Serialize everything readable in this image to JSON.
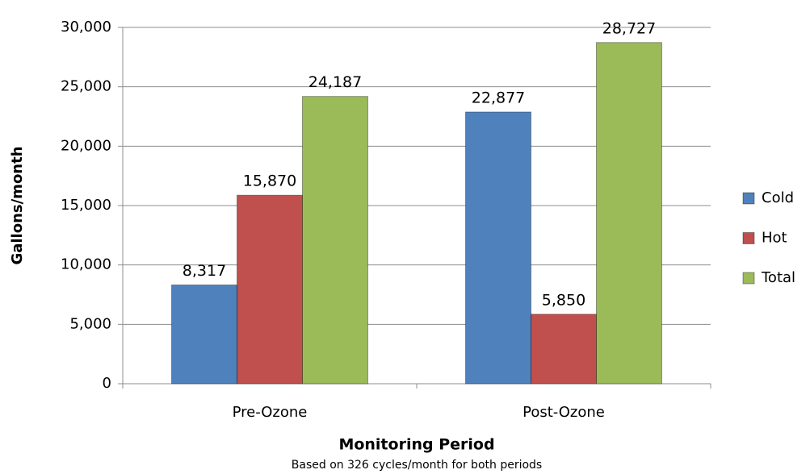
{
  "chart_data": {
    "type": "bar",
    "x_label": "Monitoring Period",
    "y_label": "Gallons/month",
    "subtitle": "Based on 326 cycles/month for both periods",
    "categories": [
      "Pre-Ozone",
      "Post-Ozone"
    ],
    "series": [
      {
        "name": "Cold",
        "color": "#4f81bd",
        "values": [
          8317,
          22877
        ],
        "value_labels": [
          "8,317",
          "22,877"
        ]
      },
      {
        "name": "Hot",
        "color": "#c0504d",
        "values": [
          15870,
          5850
        ],
        "value_labels": [
          "15,870",
          "5,850"
        ]
      },
      {
        "name": "Total",
        "color": "#9bbb59",
        "values": [
          24187,
          28727
        ],
        "value_labels": [
          "24,187",
          "28,727"
        ]
      }
    ],
    "ylim": [
      0,
      30000
    ],
    "yticks": [
      0,
      {
        "value": 5000,
        "label": "5,000"
      },
      {
        "value": 10000,
        "label": "10,000"
      },
      {
        "value": 15000,
        "label": "15,000"
      },
      {
        "value": 20000,
        "label": "20,000"
      },
      {
        "value": 25000,
        "label": "25,000"
      },
      {
        "value": 30000,
        "label": "30,000"
      }
    ],
    "grid": true,
    "legend": "right"
  }
}
